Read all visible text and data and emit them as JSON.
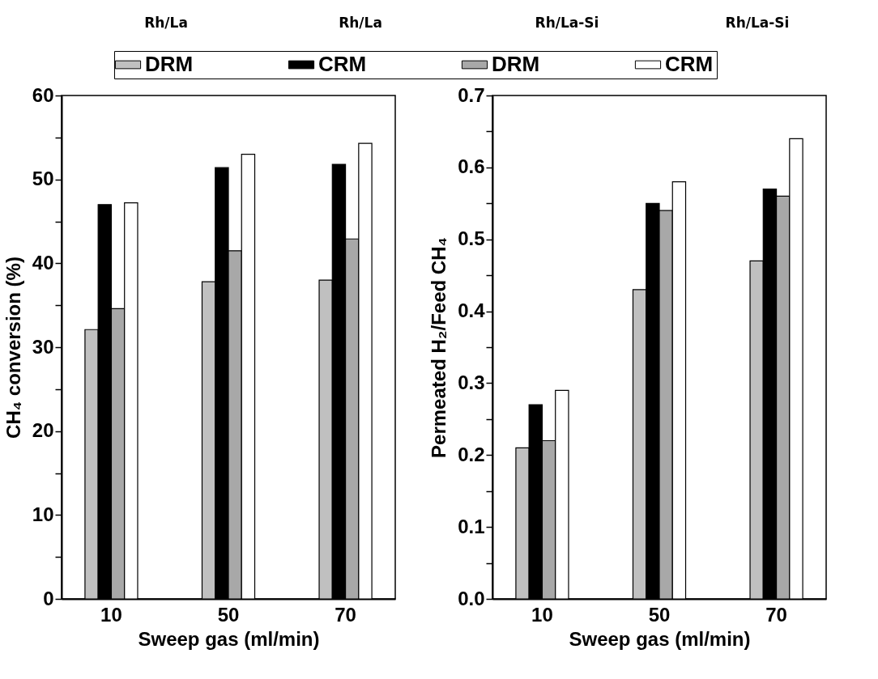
{
  "chart_data": [
    {
      "type": "bar",
      "xlabel": "Sweep gas (ml/min)",
      "ylabel": "CH₄ conversion (%)",
      "categories": [
        "10",
        "50",
        "70"
      ],
      "annotations": [
        "Rh/La",
        "Rh/La",
        "Rh/La-Si",
        "Rh/La-Si"
      ],
      "legend": "top",
      "ylim": [
        0,
        60
      ],
      "yticks": [
        0,
        {
          "value": 5,
          "label": null
        },
        10,
        {
          "value": 15,
          "label": null
        },
        20,
        {
          "value": 25,
          "label": null
        },
        30,
        {
          "value": 35,
          "label": null
        },
        40,
        {
          "value": 45,
          "label": null
        },
        50,
        {
          "value": 55,
          "label": null
        },
        60
      ],
      "series": [
        {
          "name": "DRM",
          "color": "#c0c0c0",
          "values": [
            32.1,
            37.8,
            38.0
          ]
        },
        {
          "name": "CRM",
          "color": "#000000",
          "values": [
            47.0,
            51.4,
            51.8
          ]
        },
        {
          "name": "DRM",
          "color": "#a8a8a8",
          "values": [
            34.6,
            41.5,
            42.9
          ]
        },
        {
          "name": "CRM",
          "color": "#ffffff",
          "values": [
            47.2,
            53.0,
            54.3
          ]
        }
      ]
    },
    {
      "type": "bar",
      "xlabel": "Sweep gas (ml/min)",
      "ylabel": "Permeated H₂/Feed CH₄",
      "categories": [
        "10",
        "50",
        "70"
      ],
      "legend": "top",
      "ylim": [
        0,
        0.7
      ],
      "yticks": [
        {
          "value": 0,
          "label": "0.0"
        },
        {
          "value": 0.05,
          "label": null
        },
        0.1,
        {
          "value": 0.15,
          "label": null
        },
        0.2,
        {
          "value": 0.25,
          "label": null
        },
        0.3,
        {
          "value": 0.35,
          "label": null
        },
        0.4,
        {
          "value": 0.45,
          "label": null
        },
        0.5,
        {
          "value": 0.55,
          "label": null
        },
        0.6,
        {
          "value": 0.65,
          "label": null
        },
        0.7
      ],
      "series": [
        {
          "color": "#c0c0c0",
          "values": [
            0.21,
            0.43,
            0.47
          ]
        },
        {
          "color": "#000000",
          "values": [
            0.27,
            0.55,
            0.57
          ]
        },
        {
          "color": "#a8a8a8",
          "values": [
            0.22,
            0.54,
            0.56
          ]
        },
        {
          "color": "#ffffff",
          "values": [
            0.29,
            0.58,
            0.64
          ]
        }
      ]
    }
  ]
}
